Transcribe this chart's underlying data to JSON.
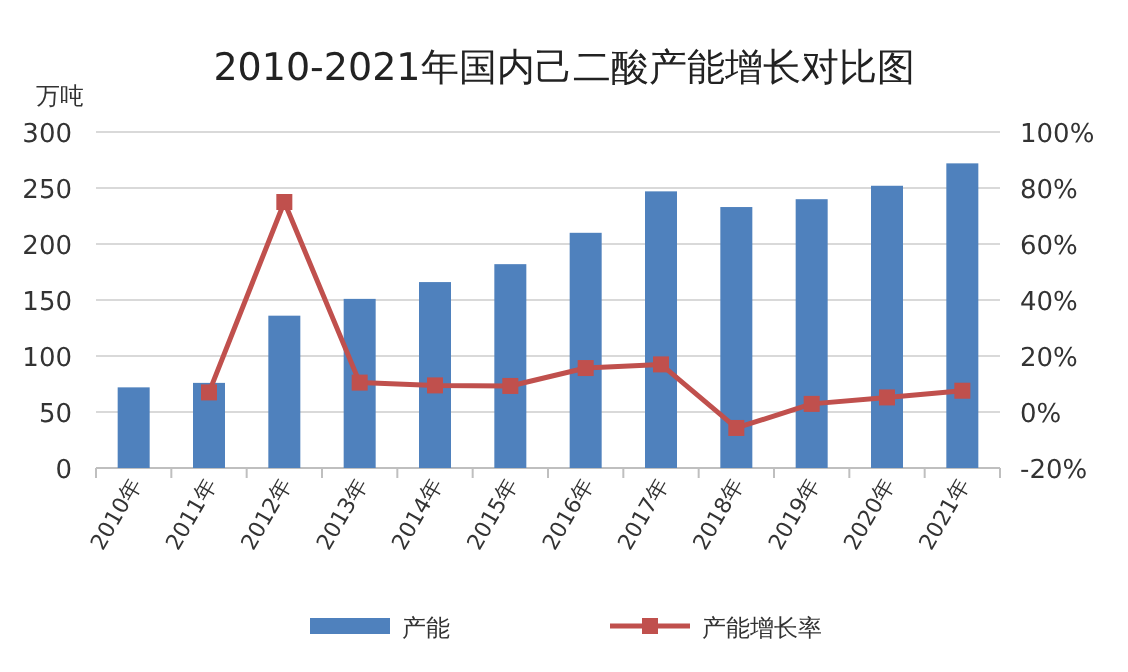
{
  "chart_data": {
    "type": "bar",
    "title": "2010-2021年国内己二酸产能增长对比图",
    "ylabel": "万吨",
    "categories": [
      "2010年",
      "2011年",
      "2012年",
      "2013年",
      "2014年",
      "2015年",
      "2016年",
      "2017年",
      "2018年",
      "2019年",
      "2020年",
      "2021年"
    ],
    "series": [
      {
        "name": "产能",
        "color": "#4f81bd",
        "values": [
          72,
          76,
          136,
          151,
          166,
          182,
          210,
          247,
          233,
          240,
          252,
          272
        ]
      },
      {
        "name": "产能增长率",
        "type": "line",
        "axis": "y2",
        "color": "#c0504d",
        "marker": "square",
        "values": [
          null,
          7,
          75,
          10.5,
          9.5,
          9.3,
          15.7,
          17,
          -5.7,
          2.9,
          5.2,
          7.6
        ]
      }
    ],
    "ylim": [
      0,
      300
    ],
    "yticks": [
      0,
      50,
      100,
      150,
      200,
      250,
      300
    ],
    "y2lim": [
      -20,
      100
    ],
    "y2ticks": [
      {
        "value": -20,
        "label": "-20%"
      },
      {
        "value": 0,
        "label": "0%"
      },
      {
        "value": 20,
        "label": "20%"
      },
      {
        "value": 40,
        "label": "40%"
      },
      {
        "value": 60,
        "label": "60%"
      },
      {
        "value": 80,
        "label": "80%"
      },
      {
        "value": 100,
        "label": "100%"
      }
    ],
    "grid": "y",
    "legend": "bottom"
  }
}
